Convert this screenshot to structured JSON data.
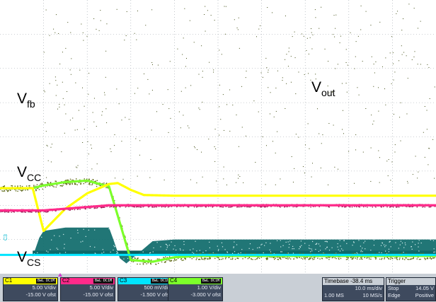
{
  "waveform_labels": {
    "vfb": {
      "main": "V",
      "sub": "fb"
    },
    "vout": {
      "main": "V",
      "sub": "out"
    },
    "vcc": {
      "main": "V",
      "sub": "CC"
    },
    "vcs": {
      "main": "V",
      "sub": "CS"
    }
  },
  "channel_marker": "C3",
  "channels": [
    {
      "name": "C1",
      "badge": "BwL DC1M",
      "color": "#ffff00",
      "vdiv": "5.00 V/div",
      "offset": "-15.00 V ofst"
    },
    {
      "name": "C2",
      "badge": "BwL DC1M",
      "color": "#ff2a8a",
      "vdiv": "5.00 V/div",
      "offset": "-15.00 V ofst"
    },
    {
      "name": "C3",
      "badge": "BwL DC1M",
      "color": "#00e5ff",
      "vdiv": "500 mV/div",
      "offset": "-1.500 V ofst"
    },
    {
      "name": "C4",
      "badge": "BwL DC1M",
      "color": "#7cff2a",
      "vdiv": "1.00 V/div",
      "offset": "-3.000 V ofst"
    }
  ],
  "timebase": {
    "label": "Timebase",
    "value": "-38.4 ms",
    "div": "10.0 ms/div",
    "samples": "1.00 MS",
    "rate": "10 MS/s"
  },
  "trigger": {
    "label": "Trigger",
    "mode": "Stop",
    "level": "14.05 V",
    "type": "Edge",
    "slope": "Positive"
  },
  "chart_data": {
    "type": "line",
    "xlabel": "",
    "ylabel": "",
    "x_divisions": 10,
    "y_divisions": 8,
    "grid": true,
    "series": [
      {
        "name": "Vfb",
        "x": [
          0,
          0.75,
          1.0,
          1.5,
          2.0,
          2.5,
          2.7,
          3.0,
          3.5,
          4.0,
          4.5,
          10.0
        ],
        "y": [
          2.5,
          2.5,
          2.58,
          2.68,
          2.72,
          2.55,
          1.7,
          0.4,
          0.35,
          0.48,
          0.52,
          0.52
        ]
      },
      {
        "name": "Vout",
        "x": [
          0,
          0.75,
          1.0,
          1.5,
          2.0,
          2.5,
          2.7,
          3.0,
          3.3,
          4.0,
          10.0
        ],
        "y": [
          2.5,
          2.5,
          1.25,
          1.9,
          2.35,
          2.62,
          2.65,
          2.45,
          2.3,
          2.28,
          2.28
        ]
      },
      {
        "name": "Vcc",
        "x": [
          0,
          1.0,
          2.0,
          2.5,
          10.0
        ],
        "y": [
          1.85,
          1.85,
          1.95,
          2.0,
          2.0
        ]
      },
      {
        "name": "Vcs",
        "x": [
          0,
          10.0
        ],
        "y": [
          0.55,
          0.55
        ]
      }
    ]
  }
}
